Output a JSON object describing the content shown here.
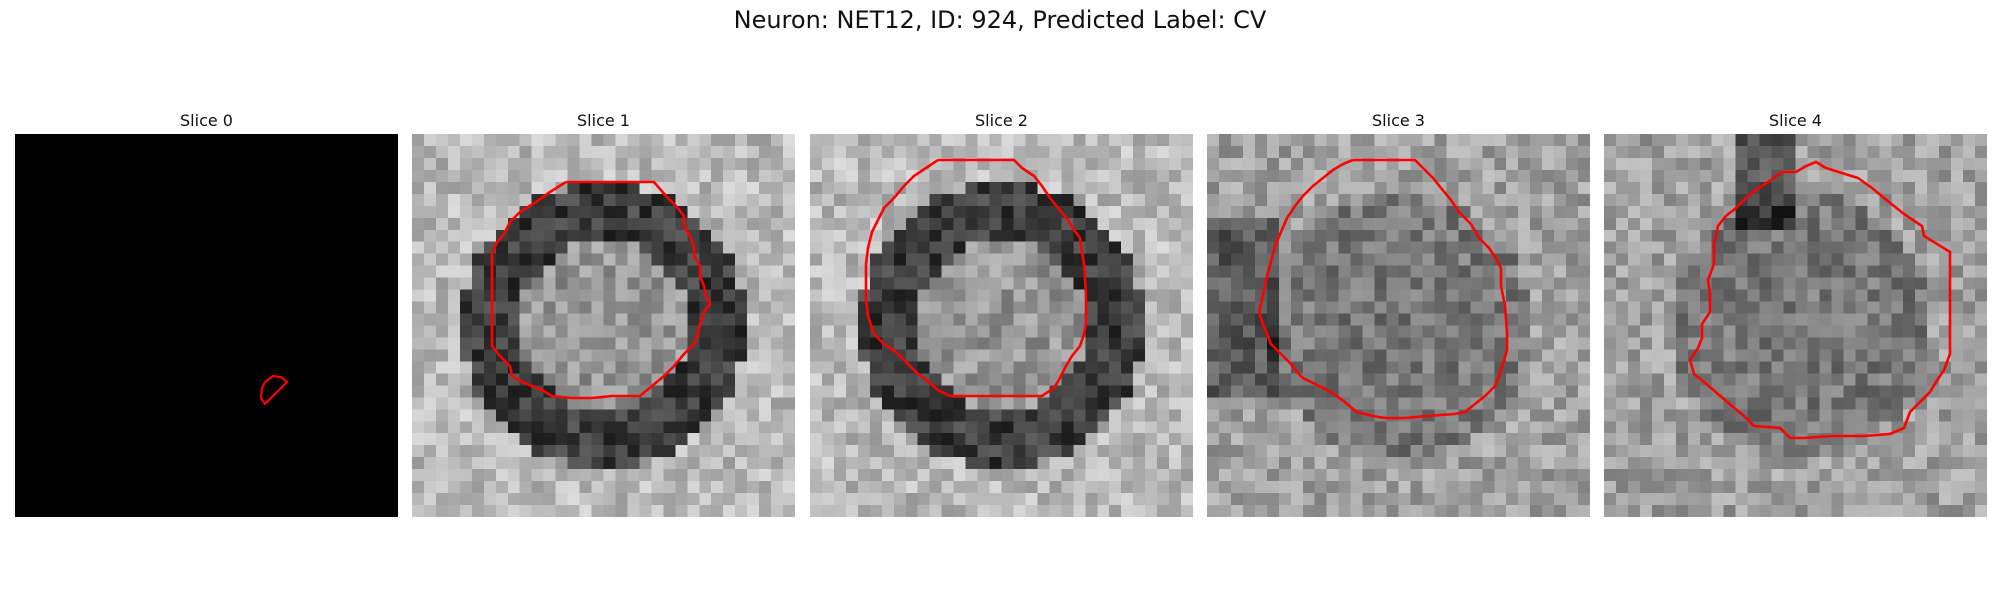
{
  "figure": {
    "title": "Neuron: NET12, ID: 924, Predicted Label: CV"
  },
  "colors": {
    "contour": "#ff0000"
  },
  "slices": [
    {
      "title": "Slice 0",
      "kind": "black"
    },
    {
      "title": "Slice 1",
      "kind": "ring"
    },
    {
      "title": "Slice 2",
      "kind": "ring"
    },
    {
      "title": "Slice 3",
      "kind": "blob"
    },
    {
      "title": "Slice 4",
      "kind": "blob"
    }
  ]
}
